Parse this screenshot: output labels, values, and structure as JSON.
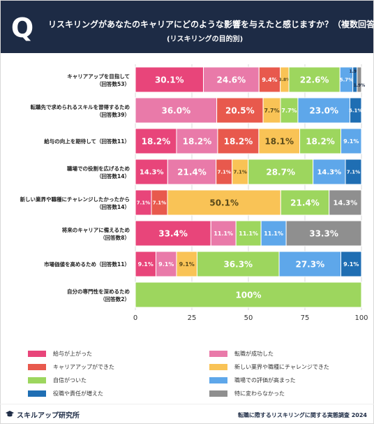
{
  "header": {
    "q_mark": "Q",
    "title": "リスキリングがあなたのキャリアにどのような影響を与えたと感じますか？（複数回答）",
    "subtitle": "(リスキリングの目的別)"
  },
  "colors": {
    "header_bg": "#1d2b45",
    "series": [
      "#e8457a",
      "#e97aa9",
      "#e8594d",
      "#f9c356",
      "#9dd65e",
      "#5ea7ea",
      "#1f6eb3",
      "#8f8f8f"
    ]
  },
  "chart_data": {
    "type": "bar",
    "orientation": "horizontal",
    "stacked": true,
    "title": "",
    "xlabel": "",
    "ylabel": "",
    "xlim": [
      0,
      100
    ],
    "x_ticks": [
      "0",
      "25",
      "50",
      "75",
      "100"
    ],
    "grid": true,
    "legend_position": "bottom",
    "categories": [
      {
        "line1": "キャリアアップを目指して",
        "line2": "（回答数53）"
      },
      {
        "line1": "転職先で求められるスキルを習得するため",
        "line2": "（回答数39）"
      },
      {
        "line1": "給与の向上を期待して（回答数11）",
        "line2": ""
      },
      {
        "line1": "職場での役割を広げるため",
        "line2": "（回答数14）"
      },
      {
        "line1": "新しい業界や職種にチャレンジしたかったから",
        "line2": "（回答数14）"
      },
      {
        "line1": "将来のキャリアに備えるため",
        "line2": "（回答数8）"
      },
      {
        "line1": "市場価値を高めるため（回答数11）",
        "line2": ""
      },
      {
        "line1": "自分の専門性を深めるため",
        "line2": "（回答数2）"
      }
    ],
    "series": [
      {
        "name": "給与が上がった",
        "values": [
          30.1,
          0,
          18.2,
          14.3,
          7.1,
          33.4,
          9.1,
          0
        ],
        "labels": [
          "30.1%",
          "",
          "18.2%",
          "14.3%",
          "7.1%",
          "33.4%",
          "9.1%",
          ""
        ]
      },
      {
        "name": "転職が成功した",
        "values": [
          24.6,
          36.0,
          18.2,
          21.4,
          0,
          11.1,
          9.1,
          0
        ],
        "labels": [
          "24.6%",
          "36.0%",
          "18.2%",
          "21.4%",
          "",
          "11.1%",
          "9.1%",
          ""
        ]
      },
      {
        "name": "キャリアアップができた",
        "values": [
          9.4,
          20.5,
          18.2,
          7.1,
          7.1,
          0,
          0,
          0
        ],
        "labels": [
          "9.4%",
          "20.5%",
          "18.2%",
          "7.1%",
          "7.1%",
          "",
          "",
          ""
        ]
      },
      {
        "name": "新しい業界や職種にチャレンジできた",
        "values": [
          3.8,
          7.7,
          18.1,
          7.1,
          50.1,
          0,
          9.1,
          0
        ],
        "labels": [
          "3.8%",
          "7.7%",
          "18.1%",
          "7.1%",
          "50.1%",
          "",
          "9.1%",
          ""
        ]
      },
      {
        "name": "自信がついた",
        "values": [
          22.6,
          7.7,
          18.2,
          28.7,
          21.4,
          11.1,
          36.3,
          100
        ],
        "labels": [
          "22.6%",
          "7.7%",
          "18.2%",
          "28.7%",
          "21.4%",
          "11.1%",
          "36.3%",
          "100%"
        ]
      },
      {
        "name": "職場での評価が高まった",
        "values": [
          5.7,
          23.0,
          9.1,
          14.3,
          0,
          11.1,
          27.3,
          0
        ],
        "labels": [
          "5.7%",
          "23.0%",
          "9.1%",
          "14.3%",
          "",
          "11.1%",
          "27.3%",
          ""
        ]
      },
      {
        "name": "役職や責任が増えた",
        "values": [
          1.9,
          5.1,
          0,
          7.1,
          0,
          0,
          9.1,
          0
        ],
        "labels": [
          "1.9%",
          "5.1%",
          "",
          "7.1%",
          "",
          "",
          "9.1%",
          ""
        ]
      },
      {
        "name": "特に変わらなかった",
        "values": [
          1.9,
          0,
          0,
          0,
          14.3,
          33.3,
          0,
          0
        ],
        "labels": [
          "1.9%",
          "",
          "",
          "",
          "14.3%",
          "33.3%",
          "",
          ""
        ]
      }
    ]
  },
  "legend": {
    "items": [
      {
        "label": "給与が上がった"
      },
      {
        "label": "転職が成功した"
      },
      {
        "label": "キャリアアップができた"
      },
      {
        "label": "新しい業界や職種にチャレンジできた"
      },
      {
        "label": "自信がついた"
      },
      {
        "label": "職場での評価が高まった"
      },
      {
        "label": "役職や責任が増えた"
      },
      {
        "label": "特に変わらなかった"
      }
    ]
  },
  "footer": {
    "brand": "スキルアップ研究所",
    "brand_icon": "graduation-cap-icon",
    "source": "転職に際するリスキリングに関する実態調査 2024"
  }
}
